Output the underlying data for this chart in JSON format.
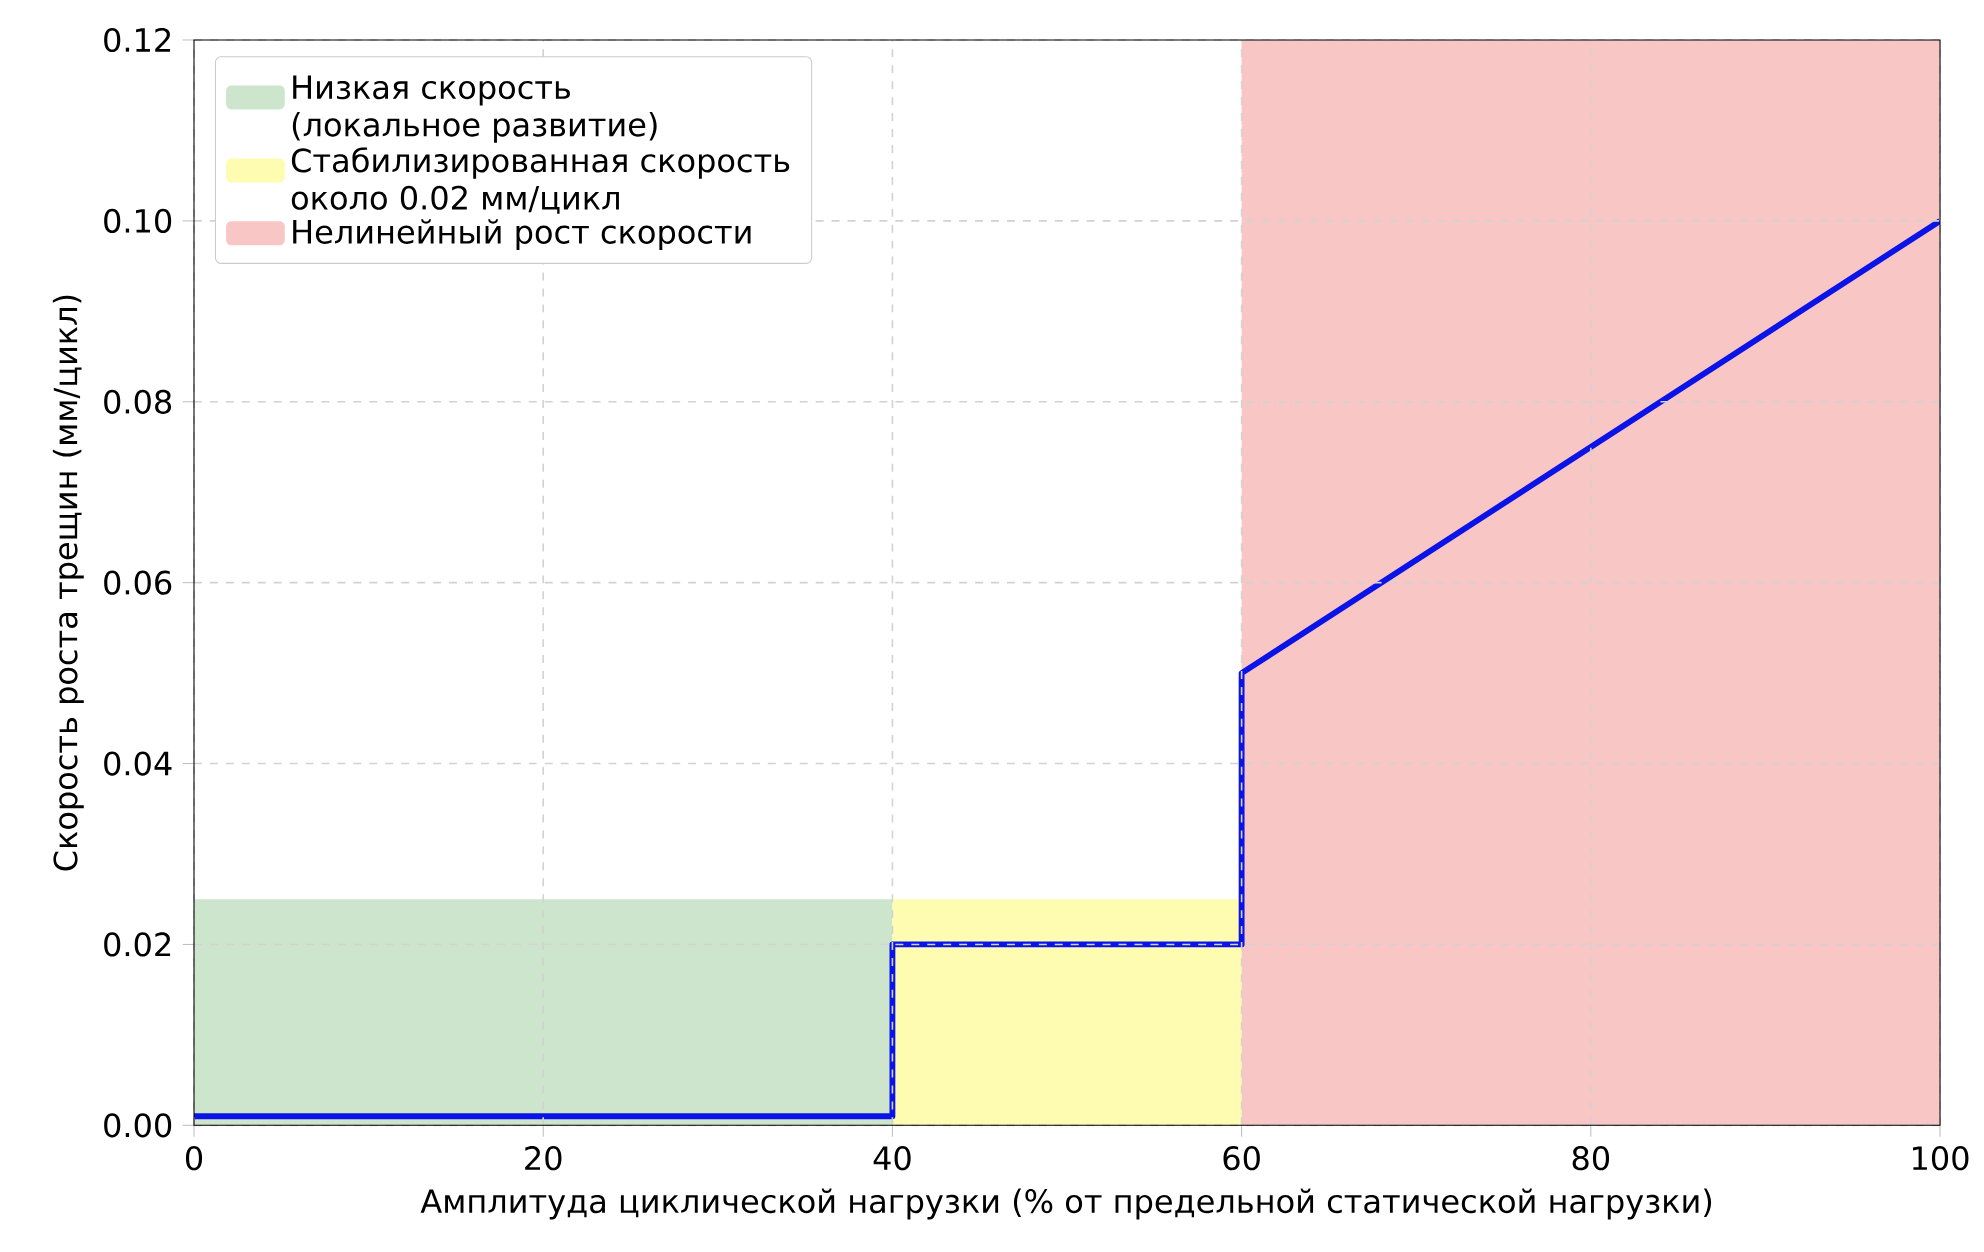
{
  "chart_data": {
    "type": "line",
    "xlabel": "Амплитуда циклической нагрузки (% от предельной статической нагрузки)",
    "ylabel": "Скорость роста трещин (мм/цикл)",
    "xlim": [
      0,
      100
    ],
    "ylim": [
      0,
      0.12
    ],
    "xticks": [
      0,
      20,
      40,
      60,
      80,
      100
    ],
    "yticks": [
      {
        "value": 0,
        "label": "0.00"
      },
      {
        "value": 0.02,
        "label": "0.02"
      },
      {
        "value": 0.04,
        "label": "0.04"
      },
      {
        "value": 0.06,
        "label": "0.06"
      },
      {
        "value": 0.08,
        "label": "0.08"
      },
      {
        "value": 0.1,
        "label": "0.10"
      },
      {
        "value": 0.12,
        "label": "0.12"
      }
    ],
    "grid": true,
    "legend": "top left",
    "series": [
      {
        "type": "area",
        "name": "Низкая скорость (локальное развитие)",
        "color": "#cce5cc",
        "x": [
          0,
          40
        ],
        "values": [
          0.025,
          0.025
        ]
      },
      {
        "type": "area",
        "name": "Стабилизированная скорость около 0.02 мм/цикл",
        "color": "#fdfcb0",
        "x": [
          40,
          60
        ],
        "values": [
          0.025,
          0.025
        ]
      },
      {
        "type": "area",
        "name": "Нелинейный рост скорости",
        "color": "#f9c6c6",
        "x": [
          60,
          100
        ],
        "values": [
          0.12,
          0.12
        ]
      },
      {
        "color": "#0a14e6",
        "x": [
          0,
          40,
          40,
          60,
          60,
          100
        ],
        "values": [
          0.001,
          0.001,
          0.02,
          0.02,
          0.05,
          0.1
        ]
      }
    ]
  }
}
